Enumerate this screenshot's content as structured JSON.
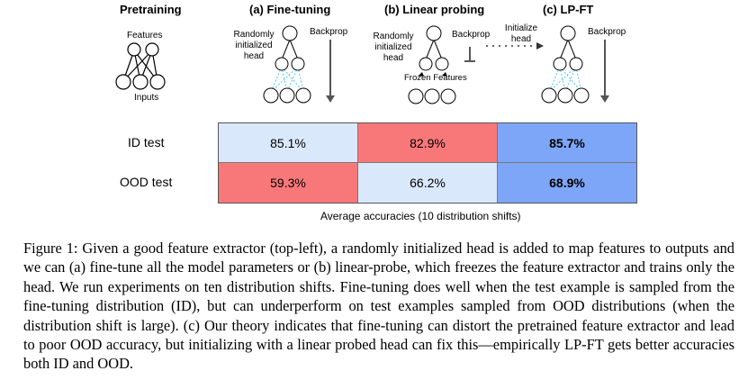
{
  "figure": {
    "columns": {
      "pretraining": "Pretraining",
      "fine_tuning": "(a) Fine-tuning",
      "linear_probing": "(b) Linear probing",
      "lp_ft": "(c) LP-FT"
    },
    "pretraining_labels": {
      "features": "Features",
      "inputs": "Inputs"
    },
    "finetune_labels": {
      "randomly_initialized_head": [
        "Randomly",
        "initialized",
        "head"
      ],
      "backprop": "Backprop"
    },
    "linear_probe_labels": {
      "randomly_initialized_head": [
        "Randomly",
        "initialized",
        "head"
      ],
      "backprop": "Backprop",
      "frozen_features": "Frozen Features"
    },
    "lpft_labels": {
      "initialize_head": [
        "Initialize",
        "head"
      ],
      "backprop": "Backprop"
    },
    "table": {
      "rows": [
        {
          "label": "ID test",
          "values": [
            "85.1%",
            "82.9%",
            "85.7%"
          ]
        },
        {
          "label": "OOD test",
          "values": [
            "59.3%",
            "66.2%",
            "68.9%"
          ]
        }
      ],
      "footer": "Average accuracies (10 distribution shifts)",
      "colors": {
        "light_blue": "#dae8fc",
        "red": "#f8787a",
        "blue": "#7ea6f8"
      }
    }
  },
  "caption": "Figure 1: Given a good feature extractor (top-left), a randomly initialized head is added to map features to outputs and we can (a) fine-tune all the model parameters or (b) linear-probe, which freezes the feature extractor and trains only the head. We run experiments on ten distribution shifts. Fine-tuning does well when the test example is sampled from the fine-tuning distribution (ID), but can underperform on test examples sampled from OOD distributions (when the distribution shift is large). (c) Our theory indicates that fine-tuning can distort the pretrained feature extractor and lead to poor OOD accuracy, but initializing with a linear probed head can fix this—empirically LP-FT gets better accuracies both ID and OOD."
}
